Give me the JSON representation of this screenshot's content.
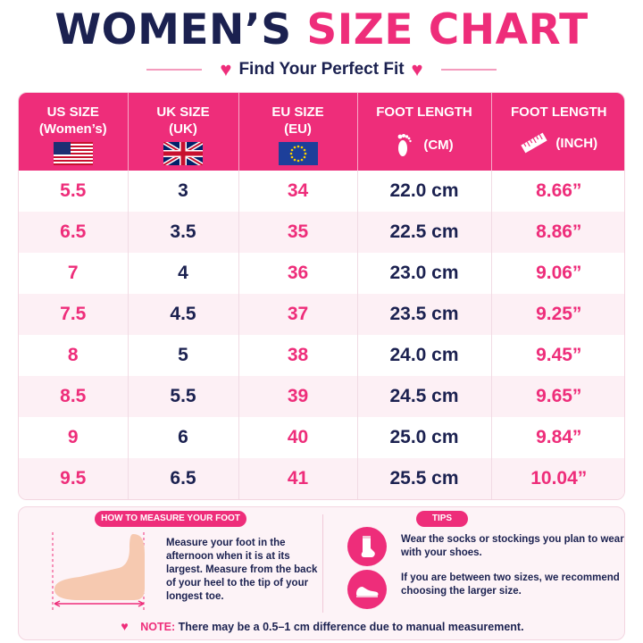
{
  "title": {
    "part1": "WOMEN’S",
    "part2": "SIZE CHART"
  },
  "subtitle": "Find Your Perfect Fit",
  "columns": [
    {
      "line1": "US SIZE",
      "line2": "(Women’s)",
      "icon": "us-flag-icon"
    },
    {
      "line1": "UK SIZE",
      "line2": "(UK)",
      "icon": "uk-flag-icon"
    },
    {
      "line1": "EU SIZE",
      "line2": "(EU)",
      "icon": "eu-flag-icon"
    },
    {
      "line1": "FOOT LENGTH",
      "line2": "(CM)",
      "icon": "footprint-icon"
    },
    {
      "line1": "FOOT LENGTH",
      "line2": "(INCH)",
      "icon": "ruler-icon"
    }
  ],
  "rows": [
    {
      "us": "5.5",
      "uk": "3",
      "eu": "34",
      "cm": "22.0 cm",
      "inch": "8.66”"
    },
    {
      "us": "6.5",
      "uk": "3.5",
      "eu": "35",
      "cm": "22.5 cm",
      "inch": "8.86”"
    },
    {
      "us": "7",
      "uk": "4",
      "eu": "36",
      "cm": "23.0 cm",
      "inch": "9.06”"
    },
    {
      "us": "7.5",
      "uk": "4.5",
      "eu": "37",
      "cm": "23.5 cm",
      "inch": "9.25”"
    },
    {
      "us": "8",
      "uk": "5",
      "eu": "38",
      "cm": "24.0 cm",
      "inch": "9.45”"
    },
    {
      "us": "8.5",
      "uk": "5.5",
      "eu": "39",
      "cm": "24.5 cm",
      "inch": "9.65”"
    },
    {
      "us": "9",
      "uk": "6",
      "eu": "40",
      "cm": "25.0 cm",
      "inch": "9.84”"
    },
    {
      "us": "9.5",
      "uk": "6.5",
      "eu": "41",
      "cm": "25.5 cm",
      "inch": "10.04”"
    }
  ],
  "measure": {
    "heading": "HOW TO MEASURE YOUR FOOT",
    "text": "Measure your foot in the afternoon when it is at its largest. Measure from the back of your heel to the tip of your longest toe."
  },
  "tips": {
    "heading": "TIPS",
    "tip1": "Wear the socks or stockings you plan to wear with your shoes.",
    "tip2": "If you are between two sizes, we recommend choosing the larger size."
  },
  "note": {
    "label": "NOTE:",
    "text": "There may be a 0.5–1 cm difference due to manual measurement."
  },
  "colors": {
    "pink": "#ee2d7a",
    "navy": "#1b2150",
    "light_pink": "#fdf0f5"
  }
}
